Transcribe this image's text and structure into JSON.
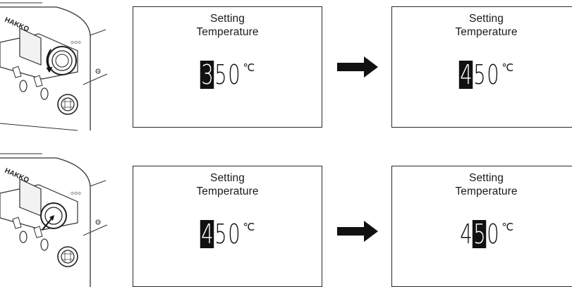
{
  "device": {
    "brand_label": "HAKKO"
  },
  "rows": [
    {
      "before": {
        "title_line1": "Setting",
        "title_line2": "Temperature",
        "digits": [
          "3",
          "5",
          "0"
        ],
        "highlight_index": 0,
        "unit": "℃"
      },
      "after": {
        "title_line1": "Setting",
        "title_line2": "Temperature",
        "digits": [
          "4",
          "5",
          "0"
        ],
        "highlight_index": 0,
        "unit": "℃"
      }
    },
    {
      "before": {
        "title_line1": "Setting",
        "title_line2": "Temperature",
        "digits": [
          "4",
          "5",
          "0"
        ],
        "highlight_index": 0,
        "unit": "℃"
      },
      "after": {
        "title_line1": "Setting",
        "title_line2": "Temperature",
        "digits": [
          "4",
          "5",
          "0"
        ],
        "highlight_index": 1,
        "unit": "℃"
      }
    }
  ]
}
